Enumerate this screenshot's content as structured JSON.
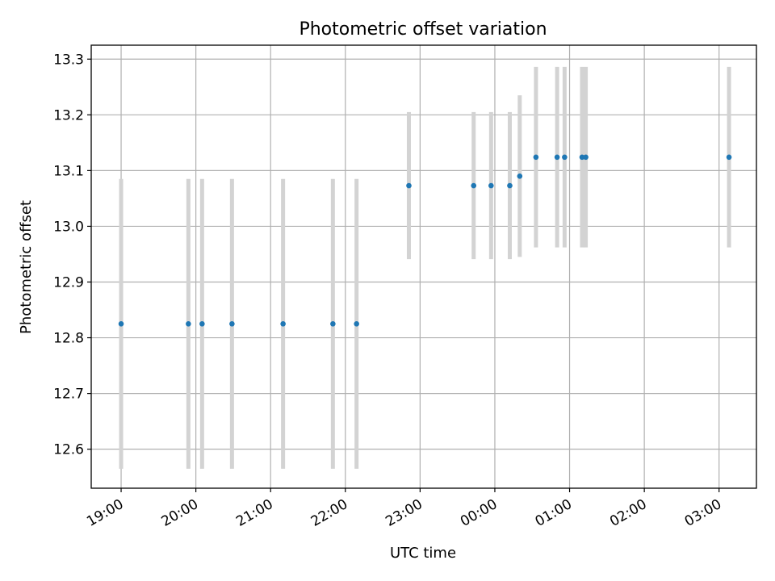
{
  "chart_data": {
    "type": "scatter",
    "title": "Photometric offset variation",
    "xlabel": "UTC time",
    "ylabel": "Photometric offset",
    "x_axis": {
      "type": "time",
      "xlim": [
        "18:36",
        "03:30"
      ],
      "tick_labels": [
        "19:00",
        "20:00",
        "21:00",
        "22:00",
        "23:00",
        "00:00",
        "01:00",
        "02:00",
        "03:00"
      ],
      "tick_label_rotation_deg": 30
    },
    "y_axis": {
      "ylim": [
        12.53,
        13.325
      ],
      "ticks": [
        12.6,
        12.7,
        12.8,
        12.9,
        13.0,
        13.1,
        13.2,
        13.3
      ],
      "tick_labels": [
        "12.6",
        "12.7",
        "12.8",
        "12.9",
        "13.0",
        "13.1",
        "13.2",
        "13.3"
      ]
    },
    "grid": true,
    "legend": "none",
    "colors": {
      "point": "#1f77b4",
      "errorbar": "#d3d3d3",
      "grid": "#b0b0b0",
      "frame": "#000000"
    },
    "series": [
      {
        "points": [
          {
            "x": "19:00",
            "y": 12.825,
            "ylow": 12.565,
            "yhigh": 13.085
          },
          {
            "x": "19:54",
            "y": 12.825,
            "ylow": 12.565,
            "yhigh": 13.085
          },
          {
            "x": "20:05",
            "y": 12.825,
            "ylow": 12.565,
            "yhigh": 13.085
          },
          {
            "x": "20:29",
            "y": 12.825,
            "ylow": 12.565,
            "yhigh": 13.085
          },
          {
            "x": "21:10",
            "y": 12.825,
            "ylow": 12.565,
            "yhigh": 13.085
          },
          {
            "x": "21:50",
            "y": 12.825,
            "ylow": 12.565,
            "yhigh": 13.085
          },
          {
            "x": "22:09",
            "y": 12.825,
            "ylow": 12.565,
            "yhigh": 13.085
          },
          {
            "x": "22:51",
            "y": 13.073,
            "ylow": 12.941,
            "yhigh": 13.205
          },
          {
            "x": "23:43",
            "y": 13.073,
            "ylow": 12.941,
            "yhigh": 13.205
          },
          {
            "x": "23:57",
            "y": 13.073,
            "ylow": 12.941,
            "yhigh": 13.205
          },
          {
            "x": "00:12",
            "y": 13.073,
            "ylow": 12.941,
            "yhigh": 13.205
          },
          {
            "x": "00:20",
            "y": 13.09,
            "ylow": 12.945,
            "yhigh": 13.235
          },
          {
            "x": "00:33",
            "y": 13.124,
            "ylow": 12.962,
            "yhigh": 13.286
          },
          {
            "x": "00:50",
            "y": 13.124,
            "ylow": 12.962,
            "yhigh": 13.286
          },
          {
            "x": "00:56",
            "y": 13.124,
            "ylow": 12.962,
            "yhigh": 13.286
          },
          {
            "x": "01:10",
            "y": 13.124,
            "ylow": 12.962,
            "yhigh": 13.286
          },
          {
            "x": "01:13",
            "y": 13.124,
            "ylow": 12.962,
            "yhigh": 13.286
          },
          {
            "x": "03:08",
            "y": 13.124,
            "ylow": 12.962,
            "yhigh": 13.286
          }
        ]
      }
    ]
  }
}
